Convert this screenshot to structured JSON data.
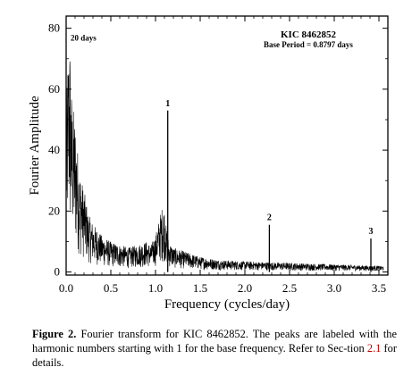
{
  "chart_data": {
    "type": "line",
    "title": "KIC 8462852",
    "subtitle": "Base Period = 0.8797 days",
    "xlabel": "Frequency (cycles/day)",
    "ylabel": "Fourier Amplitude",
    "xlim": [
      0.0,
      3.6
    ],
    "ylim": [
      -1,
      84
    ],
    "x_ticks": [
      0.0,
      0.5,
      1.0,
      1.5,
      2.0,
      2.5,
      3.0,
      3.5
    ],
    "x_tick_labels": [
      "0.0",
      "0.5",
      "1.0",
      "1.5",
      "2.0",
      "2.5",
      "3.0",
      "3.5"
    ],
    "y_ticks": [
      0,
      20,
      40,
      60,
      80
    ],
    "y_tick_labels": [
      "0",
      "20",
      "40",
      "60",
      "80"
    ],
    "grid": false,
    "series": [
      {
        "envelope": [
          [
            0.0,
            50
          ],
          [
            0.02,
            72
          ],
          [
            0.04,
            80
          ],
          [
            0.05,
            64
          ],
          [
            0.07,
            56
          ],
          [
            0.1,
            50
          ],
          [
            0.13,
            40
          ],
          [
            0.16,
            32
          ],
          [
            0.2,
            27
          ],
          [
            0.25,
            19
          ],
          [
            0.3,
            16
          ],
          [
            0.4,
            12
          ],
          [
            0.5,
            10
          ],
          [
            0.6,
            9
          ],
          [
            0.7,
            8
          ],
          [
            0.8,
            9
          ],
          [
            0.9,
            10
          ],
          [
            0.95,
            9
          ],
          [
            1.0,
            12
          ],
          [
            1.03,
            16
          ],
          [
            1.06,
            20
          ],
          [
            1.08,
            22
          ],
          [
            1.1,
            21
          ],
          [
            1.12,
            15
          ],
          [
            1.15,
            10
          ],
          [
            1.2,
            8
          ],
          [
            1.3,
            7
          ],
          [
            1.5,
            5
          ],
          [
            1.7,
            4
          ],
          [
            2.0,
            3.5
          ],
          [
            2.5,
            3
          ],
          [
            3.0,
            2.5
          ],
          [
            3.5,
            2
          ]
        ],
        "peaks": [
          {
            "x": 1.137,
            "y": 53,
            "label": "1"
          },
          {
            "x": 2.274,
            "y": 15.5,
            "label": "2"
          },
          {
            "x": 3.41,
            "y": 11,
            "label": "3"
          }
        ]
      }
    ],
    "annotations": [
      {
        "text": "20 days",
        "x": 0.05,
        "y": 76
      }
    ]
  },
  "caption": {
    "label": "Figure 2.",
    "text_before_ref": " Fourier transform for KIC 8462852. The peaks are labeled with the harmonic numbers starting with 1 for the base frequency. Refer to Sec-tion ",
    "ref": "2.1",
    "text_after_ref": " for details."
  }
}
